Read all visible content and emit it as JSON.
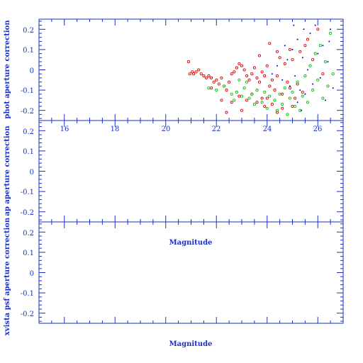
{
  "chart_data": [
    {
      "type": "scatter",
      "panel": "top",
      "ylabel": "phot aperture correction",
      "xlim": [
        15,
        27
      ],
      "ylim": [
        -0.25,
        0.25
      ],
      "xticks": [
        "16",
        "18",
        "20",
        "22",
        "24",
        "26"
      ],
      "yticks": [
        "0.2",
        "0.1",
        "0",
        "-0.1",
        "-0.2"
      ],
      "series": [
        {
          "color": "#e00000",
          "marker": "circle",
          "points": [
            [
              20.9,
              0.04
            ],
            [
              20.95,
              -0.02
            ],
            [
              21.05,
              -0.01
            ],
            [
              21.1,
              -0.02
            ],
            [
              21.2,
              -0.01
            ],
            [
              21.3,
              0.0
            ],
            [
              21.4,
              -0.02
            ],
            [
              21.5,
              -0.03
            ],
            [
              21.6,
              -0.04
            ],
            [
              21.7,
              -0.03
            ],
            [
              21.8,
              -0.04
            ],
            [
              21.9,
              -0.06
            ],
            [
              22.0,
              -0.05
            ],
            [
              22.1,
              -0.07
            ],
            [
              22.2,
              -0.04
            ],
            [
              22.3,
              -0.08
            ],
            [
              22.4,
              -0.1
            ],
            [
              22.5,
              -0.06
            ],
            [
              22.6,
              -0.02
            ],
            [
              22.7,
              -0.01
            ],
            [
              22.8,
              0.01
            ],
            [
              22.9,
              0.03
            ],
            [
              23.0,
              0.02
            ],
            [
              23.1,
              0.0
            ],
            [
              23.2,
              -0.03
            ],
            [
              23.3,
              -0.05
            ],
            [
              23.4,
              -0.02
            ],
            [
              23.5,
              0.01
            ],
            [
              23.6,
              -0.04
            ],
            [
              23.7,
              -0.06
            ],
            [
              23.8,
              -0.01
            ],
            [
              23.9,
              -0.03
            ],
            [
              24.0,
              0.02
            ],
            [
              24.1,
              -0.08
            ],
            [
              24.2,
              -0.05
            ],
            [
              24.3,
              -0.1
            ],
            [
              24.4,
              -0.03
            ],
            [
              24.5,
              0.06
            ],
            [
              24.6,
              -0.12
            ],
            [
              24.7,
              0.03
            ],
            [
              24.8,
              -0.06
            ],
            [
              24.9,
              -0.09
            ],
            [
              25.0,
              0.05
            ],
            [
              25.1,
              -0.14
            ],
            [
              25.2,
              -0.07
            ],
            [
              25.3,
              0.09
            ],
            [
              25.4,
              -0.11
            ],
            [
              25.5,
              0.12
            ],
            [
              22.9,
              -0.13
            ],
            [
              23.2,
              -0.15
            ],
            [
              23.6,
              -0.16
            ],
            [
              23.9,
              -0.18
            ],
            [
              24.2,
              -0.17
            ],
            [
              24.6,
              -0.19
            ],
            [
              22.4,
              -0.21
            ],
            [
              23.0,
              -0.2
            ],
            [
              23.8,
              -0.14
            ],
            [
              24.4,
              -0.21
            ],
            [
              22.2,
              -0.15
            ],
            [
              21.8,
              -0.09
            ],
            [
              22.6,
              -0.16
            ],
            [
              23.4,
              -0.12
            ],
            [
              24.0,
              -0.14
            ],
            [
              25.0,
              -0.18
            ],
            [
              25.6,
              0.15
            ],
            [
              25.8,
              0.05
            ],
            [
              26.0,
              0.2
            ],
            [
              26.2,
              -0.02
            ],
            [
              24.9,
              0.1
            ],
            [
              24.4,
              0.09
            ],
            [
              24.1,
              0.13
            ],
            [
              23.7,
              0.07
            ]
          ]
        },
        {
          "color": "#00c000",
          "marker": "circle",
          "points": [
            [
              21.7,
              -0.09
            ],
            [
              22.0,
              -0.1
            ],
            [
              22.3,
              -0.08
            ],
            [
              22.6,
              -0.12
            ],
            [
              22.7,
              -0.15
            ],
            [
              22.8,
              -0.11
            ],
            [
              23.0,
              -0.13
            ],
            [
              23.1,
              -0.09
            ],
            [
              23.3,
              -0.14
            ],
            [
              23.4,
              -0.12
            ],
            [
              23.5,
              -0.17
            ],
            [
              23.6,
              -0.1
            ],
            [
              23.8,
              -0.16
            ],
            [
              23.9,
              -0.11
            ],
            [
              24.0,
              -0.19
            ],
            [
              24.1,
              -0.13
            ],
            [
              24.3,
              -0.15
            ],
            [
              24.4,
              -0.2
            ],
            [
              24.5,
              -0.12
            ],
            [
              24.6,
              -0.17
            ],
            [
              24.7,
              -0.09
            ],
            [
              24.8,
              -0.22
            ],
            [
              24.9,
              -0.14
            ],
            [
              25.0,
              -0.11
            ],
            [
              25.1,
              -0.18
            ],
            [
              25.2,
              -0.06
            ],
            [
              25.3,
              -0.2
            ],
            [
              25.4,
              -0.13
            ],
            [
              25.5,
              -0.03
            ],
            [
              25.6,
              -0.16
            ],
            [
              25.7,
              0.02
            ],
            [
              25.8,
              -0.1
            ],
            [
              25.9,
              0.08
            ],
            [
              26.0,
              -0.05
            ],
            [
              26.1,
              0.12
            ],
            [
              26.2,
              -0.14
            ],
            [
              26.3,
              0.04
            ],
            [
              26.4,
              -0.08
            ],
            [
              26.5,
              0.18
            ],
            [
              26.6,
              -0.02
            ],
            [
              23.2,
              -0.06
            ],
            [
              22.9,
              -0.05
            ]
          ]
        },
        {
          "color": "#0000c8",
          "marker": "dot",
          "points": [
            [
              24.2,
              -0.02
            ],
            [
              24.4,
              0.02
            ],
            [
              24.6,
              -0.05
            ],
            [
              24.8,
              0.05
            ],
            [
              24.9,
              -0.08
            ],
            [
              25.0,
              0.1
            ],
            [
              25.1,
              -0.03
            ],
            [
              25.2,
              0.15
            ],
            [
              25.3,
              -0.1
            ],
            [
              25.4,
              0.06
            ],
            [
              25.5,
              -0.12
            ],
            [
              25.6,
              0.0
            ],
            [
              25.7,
              0.18
            ],
            [
              25.8,
              -0.07
            ],
            [
              25.9,
              0.22
            ],
            [
              26.0,
              0.08
            ],
            [
              26.1,
              -0.04
            ],
            [
              26.2,
              0.12
            ],
            [
              26.3,
              -0.15
            ],
            [
              26.4,
              0.04
            ],
            [
              26.5,
              0.2
            ],
            [
              26.6,
              -0.09
            ],
            [
              25.2,
              -0.16
            ],
            [
              25.45,
              0.2
            ],
            [
              24.7,
              0.12
            ],
            [
              25.05,
              0.22
            ],
            [
              25.35,
              -0.2
            ],
            [
              26.45,
              0.14
            ]
          ]
        }
      ]
    },
    {
      "type": "scatter",
      "panel": "middle",
      "xlabel": "Magnitude",
      "ylabel": "ap aperture correction",
      "ylim": [
        -0.25,
        0.25
      ],
      "yticks": [
        "0.2",
        "0.1",
        "0",
        "-0.1",
        "-0.2"
      ],
      "series": []
    },
    {
      "type": "scatter",
      "panel": "bottom",
      "xlabel": "Magnitude",
      "ylabel": "xvista psf aperture correction",
      "ylim": [
        -0.25,
        0.25
      ],
      "yticks": [
        "0.2",
        "0.1",
        "0",
        "-0.1",
        "-0.2"
      ],
      "series": []
    }
  ]
}
